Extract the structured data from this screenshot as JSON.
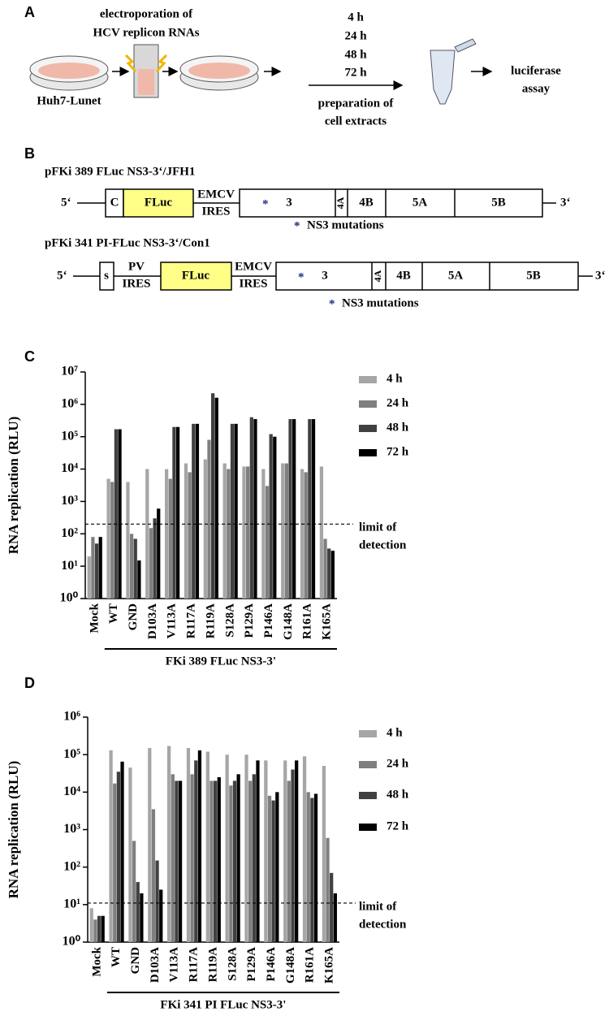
{
  "panel_a": {
    "label": "A",
    "electroporation": [
      "electroporation of",
      "HCV replicon RNAs"
    ],
    "cells": "Huh7-Lunet",
    "times": [
      "4 h",
      "24 h",
      "48 h",
      "72 h"
    ],
    "preparation": [
      "preparation of",
      "cell extracts"
    ],
    "assay": [
      "luciferase",
      "assay"
    ]
  },
  "panel_b": {
    "label": "B",
    "constructs": [
      {
        "title": "pFKi 389 FLuc NS3-3‘/JFH1",
        "five": "5‘",
        "three": "3‘",
        "segments": [
          "C",
          "FLuc",
          "EMCV",
          "IRES",
          "3",
          "4A",
          "4B",
          "5A",
          "5B"
        ],
        "mutation_marker": "*",
        "mutation_label": "NS3 mutations"
      },
      {
        "title": "pFKi 341 PI-FLuc NS3-3‘/Con1",
        "five": "5‘",
        "three": "3‘",
        "segments": [
          "s",
          "PV",
          "IRES",
          "FLuc",
          "EMCV",
          "IRES",
          "3",
          "4A",
          "4B",
          "5A",
          "5B"
        ],
        "mutation_marker": "*",
        "mutation_label": "NS3 mutations"
      }
    ]
  },
  "chart_data": [
    {
      "type": "bar",
      "panel_label": "C",
      "y_label": "RNA replication (RLU)",
      "log_y": true,
      "legend": "right",
      "categories": [
        "Mock",
        "WT",
        "GND",
        "D103A",
        "V113A",
        "R117A",
        "R119A",
        "S128A",
        "P129A",
        "P146A",
        "G148A",
        "R161A",
        "K165A"
      ],
      "series": [
        {
          "name": "4 h",
          "color": "#a6a6a6",
          "values": [
            20,
            5000,
            4000,
            10000,
            10000,
            15000,
            20000,
            15000,
            12000,
            10000,
            15000,
            10000,
            12000
          ]
        },
        {
          "name": "24 h",
          "color": "#7f7f7f",
          "values": [
            80,
            4000,
            100,
            150,
            5000,
            8000,
            80000,
            10000,
            12000,
            3000,
            15000,
            8000,
            70
          ]
        },
        {
          "name": "48 h",
          "color": "#404040",
          "values": [
            50,
            170000,
            70,
            300,
            200000,
            250000,
            2200000,
            250000,
            400000,
            120000,
            350000,
            350000,
            35
          ]
        },
        {
          "name": "72 h",
          "color": "#000000",
          "values": [
            80,
            170000,
            15,
            600,
            200000,
            250000,
            1600000,
            250000,
            350000,
            100000,
            350000,
            350000,
            30
          ]
        }
      ],
      "ylim": [
        1,
        10000000
      ],
      "yticks": [
        {
          "value": 1,
          "label": "10⁰"
        },
        {
          "value": 10,
          "label": "10¹"
        },
        {
          "value": 100,
          "label": "10²"
        },
        {
          "value": 1000,
          "label": "10³"
        },
        {
          "value": 10000,
          "label": "10⁴"
        },
        {
          "value": 100000,
          "label": "10⁵"
        },
        {
          "value": 1000000,
          "label": "10⁶"
        },
        {
          "value": 10000000,
          "label": "10⁷"
        }
      ],
      "threshold": 200,
      "threshold_label": [
        "limit of",
        "detection"
      ],
      "group_label": "FKi 389 FLuc NS3-3'"
    },
    {
      "type": "bar",
      "panel_label": "D",
      "y_label": "RNA replication (RLU)",
      "log_y": true,
      "legend": "right",
      "categories": [
        "Mock",
        "WT",
        "GND",
        "D103A",
        "V113A",
        "R117A",
        "R119A",
        "S128A",
        "P129A",
        "P146A",
        "G148A",
        "R161A",
        "K165A"
      ],
      "series": [
        {
          "name": "4 h",
          "color": "#a6a6a6",
          "values": [
            8,
            130000,
            45000,
            150000,
            170000,
            150000,
            120000,
            100000,
            100000,
            70000,
            70000,
            90000,
            50000
          ]
        },
        {
          "name": "24 h",
          "color": "#7f7f7f",
          "values": [
            4,
            17000,
            500,
            3500,
            30000,
            30000,
            20000,
            15000,
            20000,
            8000,
            20000,
            10000,
            600
          ]
        },
        {
          "name": "48 h",
          "color": "#404040",
          "values": [
            5,
            35000,
            40,
            150,
            20000,
            70000,
            20000,
            20000,
            30000,
            6000,
            40000,
            7000,
            70
          ]
        },
        {
          "name": "72 h",
          "color": "#000000",
          "values": [
            5,
            65000,
            20,
            25,
            20000,
            130000,
            25000,
            30000,
            70000,
            10000,
            70000,
            9000,
            20
          ]
        }
      ],
      "ylim": [
        1,
        1000000
      ],
      "yticks": [
        {
          "value": 1,
          "label": "10⁰"
        },
        {
          "value": 10,
          "label": "10¹"
        },
        {
          "value": 100,
          "label": "10²"
        },
        {
          "value": 1000,
          "label": "10³"
        },
        {
          "value": 10000,
          "label": "10⁴"
        },
        {
          "value": 100000,
          "label": "10⁵"
        },
        {
          "value": 1000000,
          "label": "10⁶"
        }
      ],
      "threshold": 11,
      "threshold_label": [
        "limit of",
        "detection"
      ],
      "group_label": "FKi 341 PI FLuc NS3-3'"
    }
  ]
}
